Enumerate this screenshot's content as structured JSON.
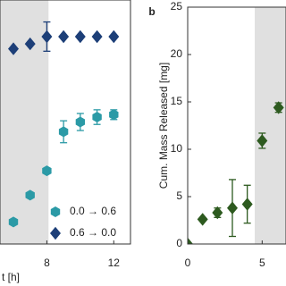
{
  "chart_data": [
    {
      "type": "scatter",
      "xlabel": "t [h]",
      "xlim": [
        5.2,
        13
      ],
      "xticks": [
        8,
        12
      ],
      "ylim": [
        0,
        1
      ],
      "shade": [
        5.2,
        8.1
      ],
      "legend": "lower right",
      "series": [
        {
          "name": "0.0 → 0.6",
          "color": "#2b9aa6",
          "marker": "hexagon",
          "x": [
            6,
            7,
            8,
            9,
            10,
            11,
            12
          ],
          "values": [
            0.09,
            0.2,
            0.3,
            0.46,
            0.5,
            0.52,
            0.53
          ],
          "errors": [
            null,
            null,
            null,
            0.045,
            0.035,
            0.03,
            0.02
          ]
        },
        {
          "name": "0.6 → 0.0",
          "color": "#1d3f78",
          "marker": "diamond",
          "x": [
            6,
            7,
            8,
            9,
            10,
            11,
            12
          ],
          "values": [
            0.8,
            0.82,
            0.85,
            0.85,
            0.85,
            0.85,
            0.85
          ],
          "errors": [
            null,
            null,
            0.06,
            null,
            null,
            null,
            null
          ]
        }
      ]
    },
    {
      "type": "scatter",
      "panel_label": "b",
      "ylabel": "Cum. Mass Released [mg]",
      "xlim": [
        0,
        6.6
      ],
      "xticks": [
        0,
        5
      ],
      "ylim": [
        0,
        25
      ],
      "yticks": [
        0,
        5,
        10,
        15,
        20,
        25
      ],
      "shade": [
        4.5,
        6.6
      ],
      "color": "#2d5a1f",
      "marker": "diamond",
      "x": [
        0,
        1,
        2,
        3,
        4,
        5,
        6.1
      ],
      "values": [
        0,
        2.6,
        3.3,
        3.8,
        4.2,
        10.9,
        14.4
      ],
      "errors": [
        null,
        null,
        0.5,
        3,
        2,
        0.8,
        0.5
      ]
    }
  ]
}
